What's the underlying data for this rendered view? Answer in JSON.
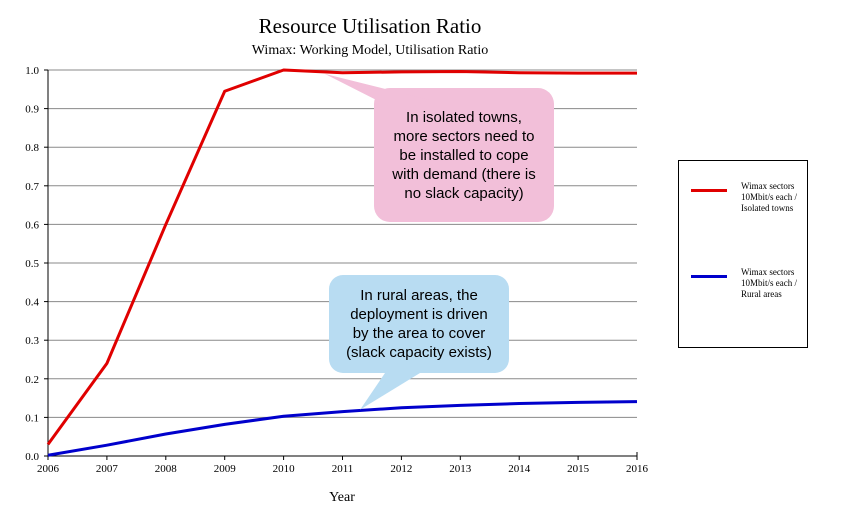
{
  "chart_data": {
    "type": "line",
    "title": "Resource Utilisation Ratio",
    "subtitle": "Wimax: Working Model, Utilisation Ratio",
    "xlabel": "Year",
    "ylabel": "",
    "x": [
      2006,
      2007,
      2008,
      2009,
      2010,
      2011,
      2012,
      2013,
      2014,
      2015,
      2016
    ],
    "ylim": [
      0,
      1.0
    ],
    "yticks": [
      "0.0",
      "0.1",
      "0.2",
      "0.3",
      "0.4",
      "0.5",
      "0.6",
      "0.7",
      "0.8",
      "0.9",
      "1.0"
    ],
    "xticks": [
      "2006",
      "2007",
      "2008",
      "2009",
      "2010",
      "2011",
      "2012",
      "2013",
      "2014",
      "2015",
      "2016"
    ],
    "grid": true,
    "legend_position": "right",
    "series": [
      {
        "name": "Wimax sectors 10Mbit/s each / Isolated towns",
        "color": "#e00000",
        "values": [
          0.03,
          0.24,
          0.6,
          0.945,
          1.0,
          0.993,
          0.995,
          0.996,
          0.993,
          0.992,
          0.992
        ]
      },
      {
        "name": "Wimax sectors 10Mbit/s each / Rural areas",
        "color": "#0000cc",
        "values": [
          0.002,
          0.028,
          0.057,
          0.082,
          0.103,
          0.115,
          0.125,
          0.131,
          0.136,
          0.139,
          0.141
        ]
      }
    ],
    "annotations": [
      {
        "id": "isolated",
        "lines": [
          "In isolated towns,",
          "more sectors need to",
          "be installed to cope",
          "with demand (there is",
          "no slack capacity)"
        ],
        "fill": "#f2bfd9",
        "anchor_x": 2010.7,
        "anchor_y": 0.99
      },
      {
        "id": "rural",
        "lines": [
          "In rural areas, the",
          "deployment is driven",
          "by the area to cover",
          "(slack capacity exists)"
        ],
        "fill": "#b8dcf2",
        "anchor_x": 2011.3,
        "anchor_y": 0.12
      }
    ]
  }
}
